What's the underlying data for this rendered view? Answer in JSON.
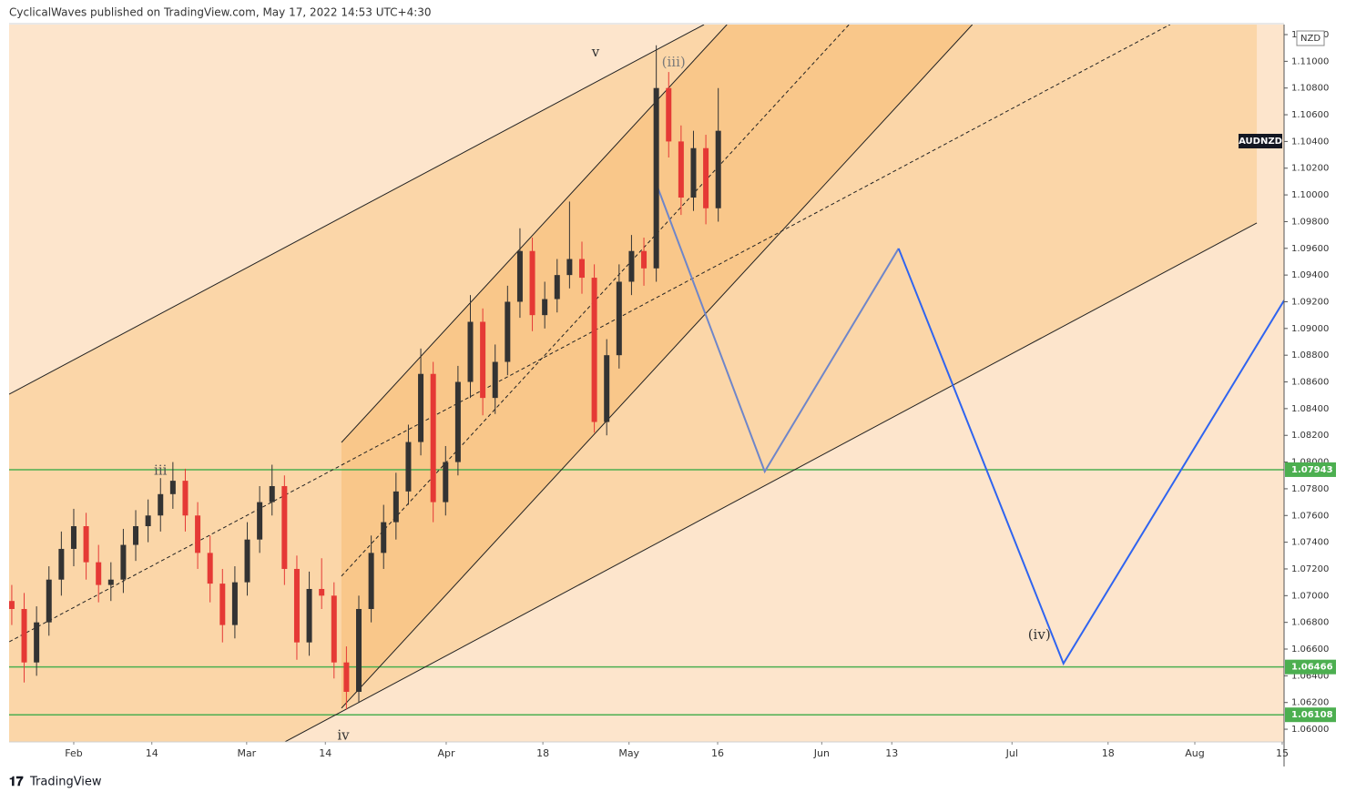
{
  "chart_data": {
    "type": "candlestick",
    "header": "CyclicalWaves published on TradingView.com, May 17, 2022 14:53 UTC+4:30",
    "currency": "NZD",
    "symbol": "AUDNZD",
    "footer_brand": "TradingView",
    "up_color": "#333333",
    "down_color": "#e53935",
    "background": "#fde5cc",
    "xlim": [
      20.57,
      226.3
    ],
    "ylim": [
      1.05905,
      1.11275
    ],
    "xticks": [
      {
        "value": 31.0,
        "label": "Feb"
      },
      {
        "value": 43.6,
        "label": "14"
      },
      {
        "value": 58.9,
        "label": "Mar"
      },
      {
        "value": 71.6,
        "label": "14"
      },
      {
        "value": 91.1,
        "label": "Apr"
      },
      {
        "value": 106.7,
        "label": "18"
      },
      {
        "value": 120.6,
        "label": "May"
      },
      {
        "value": 134.9,
        "label": "16"
      },
      {
        "value": 151.7,
        "label": "Jun"
      },
      {
        "value": 163.0,
        "label": "13"
      },
      {
        "value": 182.4,
        "label": "Jul"
      },
      {
        "value": 197.9,
        "label": "18"
      },
      {
        "value": 211.9,
        "label": "Aug"
      },
      {
        "value": 226.0,
        "label": "15"
      }
    ],
    "yticks": [
      {
        "value": 1.06,
        "label": "1.06000"
      },
      {
        "value": 1.062,
        "label": "1.06200"
      },
      {
        "value": 1.064,
        "label": "1.06400"
      },
      {
        "value": 1.066,
        "label": "1.06600"
      },
      {
        "value": 1.068,
        "label": "1.06800"
      },
      {
        "value": 1.07,
        "label": "1.07000"
      },
      {
        "value": 1.072,
        "label": "1.07200"
      },
      {
        "value": 1.074,
        "label": "1.07400"
      },
      {
        "value": 1.076,
        "label": "1.07600"
      },
      {
        "value": 1.078,
        "label": "1.07800"
      },
      {
        "value": 1.08,
        "label": "1.08000"
      },
      {
        "value": 1.082,
        "label": "1.08200"
      },
      {
        "value": 1.084,
        "label": "1.08400"
      },
      {
        "value": 1.086,
        "label": "1.08600"
      },
      {
        "value": 1.088,
        "label": "1.08800"
      },
      {
        "value": 1.09,
        "label": "1.09000"
      },
      {
        "value": 1.092,
        "label": "1.09200"
      },
      {
        "value": 1.094,
        "label": "1.09400"
      },
      {
        "value": 1.096,
        "label": "1.09600"
      },
      {
        "value": 1.098,
        "label": "1.09800"
      },
      {
        "value": 1.1,
        "label": "1.10000"
      },
      {
        "value": 1.102,
        "label": "1.10200"
      },
      {
        "value": 1.104,
        "label": "1.10400"
      },
      {
        "value": 1.106,
        "label": "1.10600"
      },
      {
        "value": 1.108,
        "label": "1.10800"
      },
      {
        "value": 1.11,
        "label": "1.11000"
      },
      {
        "value": 1.112,
        "label": "1.11200"
      }
    ],
    "x": [
      21,
      23,
      25,
      27,
      29,
      31,
      33,
      35,
      37,
      39,
      41,
      43,
      45,
      47,
      49,
      51,
      53,
      55,
      57,
      59,
      61,
      63,
      65,
      67,
      69,
      71,
      73,
      75,
      77,
      79,
      81,
      83,
      85,
      87,
      89,
      91,
      93,
      95,
      97,
      99,
      101,
      103,
      105,
      107,
      109,
      111,
      113,
      115,
      117,
      119,
      121,
      123,
      125,
      127,
      129,
      131,
      133,
      135
    ],
    "open": [
      1.0696,
      1.069,
      1.065,
      1.068,
      1.0712,
      1.0735,
      1.0752,
      1.0725,
      1.0708,
      1.0712,
      1.0738,
      1.0752,
      1.076,
      1.0776,
      1.0786,
      1.076,
      1.0732,
      1.0709,
      1.0678,
      1.071,
      1.0742,
      1.077,
      1.0782,
      1.072,
      1.0665,
      1.0705,
      1.07,
      1.065,
      1.0628,
      1.069,
      1.0732,
      1.0755,
      1.0778,
      1.0815,
      1.0866,
      1.077,
      1.08,
      1.086,
      1.0905,
      1.0848,
      1.0875,
      1.092,
      1.0958,
      1.091,
      1.0922,
      1.094,
      1.0952,
      1.0938,
      1.083,
      1.088,
      1.0935,
      1.0958,
      1.0945,
      1.108,
      1.104,
      1.0998,
      1.1035,
      1.099
    ],
    "high": [
      1.0708,
      1.0702,
      1.0692,
      1.0722,
      1.0748,
      1.0765,
      1.0762,
      1.0738,
      1.0725,
      1.075,
      1.0764,
      1.0772,
      1.0788,
      1.08,
      1.0795,
      1.077,
      1.0745,
      1.072,
      1.0722,
      1.0755,
      1.0782,
      1.0798,
      1.079,
      1.073,
      1.0718,
      1.0728,
      1.071,
      1.0662,
      1.07,
      1.0745,
      1.0768,
      1.0792,
      1.0828,
      1.0885,
      1.0875,
      1.0812,
      1.0872,
      1.0925,
      1.0915,
      1.0888,
      1.0932,
      1.0975,
      1.0968,
      1.0935,
      1.0952,
      1.0995,
      1.0965,
      1.0948,
      1.0892,
      1.0948,
      1.097,
      1.0968,
      1.1112,
      1.1092,
      1.1052,
      1.1048,
      1.1045,
      1.108
    ],
    "low": [
      1.0678,
      1.0635,
      1.064,
      1.067,
      1.07,
      1.0722,
      1.0712,
      1.0695,
      1.0696,
      1.0702,
      1.0726,
      1.074,
      1.0748,
      1.0765,
      1.0748,
      1.072,
      1.0695,
      1.0665,
      1.0668,
      1.07,
      1.0732,
      1.076,
      1.0708,
      1.0652,
      1.0655,
      1.069,
      1.0638,
      1.0615,
      1.062,
      1.068,
      1.072,
      1.0742,
      1.0768,
      1.0805,
      1.0755,
      1.076,
      1.079,
      1.0848,
      1.0835,
      1.0836,
      1.0865,
      1.0908,
      1.0898,
      1.09,
      1.0912,
      1.093,
      1.0926,
      1.0822,
      1.082,
      1.087,
      1.0925,
      1.0932,
      1.0935,
      1.1028,
      1.0985,
      1.0988,
      1.0978,
      1.098
    ],
    "close": [
      1.069,
      1.065,
      1.068,
      1.0712,
      1.0735,
      1.0752,
      1.0725,
      1.0708,
      1.0712,
      1.0738,
      1.0752,
      1.076,
      1.0776,
      1.0786,
      1.076,
      1.0732,
      1.0709,
      1.0678,
      1.071,
      1.0742,
      1.077,
      1.0782,
      1.072,
      1.0665,
      1.0705,
      1.07,
      1.065,
      1.0628,
      1.069,
      1.0732,
      1.0755,
      1.0778,
      1.0815,
      1.0866,
      1.077,
      1.08,
      1.086,
      1.0905,
      1.0848,
      1.0875,
      1.092,
      1.0958,
      1.091,
      1.0922,
      1.094,
      1.0952,
      1.0938,
      1.083,
      1.088,
      1.0935,
      1.0958,
      1.0945,
      1.108,
      1.104,
      1.0998,
      1.1035,
      1.099,
      1.1048
    ],
    "zones": [
      {
        "color": "#fbd6a8",
        "x": [
          20.57,
          132.7,
          221.9,
          221.9,
          65.1,
          20.57
        ],
        "y": [
          1.08508,
          1.11275,
          1.11275,
          1.0979,
          1.05906,
          1.05906
        ]
      },
      {
        "color": "#f9c78a",
        "x": [
          74.2,
          136.4,
          176.0,
          74.2
        ],
        "y": [
          1.08147,
          1.11275,
          1.11275,
          1.06158
        ]
      }
    ],
    "lines": [
      {
        "color": "#222222",
        "dash": false,
        "width": 1,
        "x": [
          20.57,
          132.7
        ],
        "y": [
          1.08508,
          1.11275
        ]
      },
      {
        "color": "#222222",
        "dash": false,
        "width": 1,
        "x": [
          65.1,
          221.9
        ],
        "y": [
          1.05906,
          1.0979
        ]
      },
      {
        "color": "#222222",
        "dash": false,
        "width": 1,
        "x": [
          74.2,
          136.4
        ],
        "y": [
          1.08147,
          1.11275
        ]
      },
      {
        "color": "#222222",
        "dash": false,
        "width": 1,
        "x": [
          74.2,
          176.0
        ],
        "y": [
          1.06158,
          1.11275
        ]
      },
      {
        "color": "#222222",
        "dash": true,
        "width": 1,
        "x": [
          20.6,
          207.9
        ],
        "y": [
          1.06655,
          1.11275
        ]
      },
      {
        "color": "#222222",
        "dash": true,
        "width": 1,
        "x": [
          74.2,
          156.1
        ],
        "y": [
          1.07146,
          1.11275
        ]
      },
      {
        "color": "#6f86c9",
        "dash": false,
        "width": 2,
        "x": [
          124.9,
          142.5,
          164.1
        ],
        "y": [
          1.10096,
          1.07929,
          1.09599
        ]
      },
      {
        "color": "#2f64f0",
        "dash": false,
        "width": 2,
        "x": [
          164.1,
          190.7,
          226.3
        ],
        "y": [
          1.09599,
          1.06492,
          1.0921
        ]
      }
    ],
    "hlines": [
      1.07943,
      1.06466,
      1.06108
    ],
    "hline_color": "#4caf50",
    "annotations": [
      {
        "text": "v",
        "x": 115.2,
        "y": 1.11064,
        "color": "#333333"
      },
      {
        "text": "(iii)",
        "x": 127.8,
        "y": 1.10989,
        "color": "#7a7a7a"
      },
      {
        "text": "iii",
        "x": 45.0,
        "y": 1.07932,
        "color": "#555555"
      },
      {
        "text": "iv",
        "x": 74.5,
        "y": 1.05948,
        "color": "#333333"
      },
      {
        "text": "(iv)",
        "x": 186.8,
        "y": 1.06703,
        "color": "#333333"
      }
    ]
  }
}
